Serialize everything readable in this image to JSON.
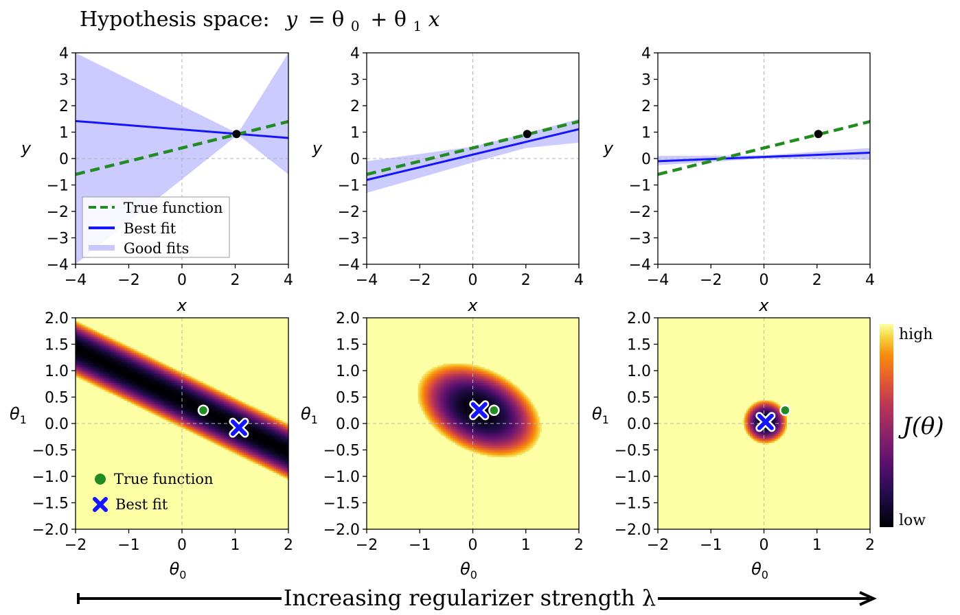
{
  "figure": {
    "title_prefix": "Hypothesis space:",
    "title_eq_y": "y",
    "title_eq_rest": "= θ",
    "title_eq_sub0": "0",
    "title_eq_plus": "+ θ",
    "title_eq_sub1": "1",
    "title_eq_x": "x",
    "footer": "Increasing regularizer strength λ"
  },
  "colors": {
    "true_function": "#228b22",
    "best_fit": "#1414ff",
    "good_fits": "#c8c8ff",
    "observed_point": "#000000",
    "cost_low": "#000004",
    "cost_high": "#fcffa4"
  },
  "colorbar": {
    "label": "J(θ)",
    "high_label": "high",
    "low_label": "low",
    "colormap": "inferno"
  },
  "chart_data": [
    {
      "type": "line",
      "panel": "top-left",
      "xlabel": "x",
      "ylabel": "y",
      "xlim": [
        -4,
        4
      ],
      "ylim": [
        -4,
        4
      ],
      "xticks": [
        "−4",
        "−2",
        "0",
        "2",
        "4"
      ],
      "yticks": [
        "−4",
        "−3",
        "−2",
        "−1",
        "0",
        "1",
        "2",
        "3",
        "4"
      ],
      "true_function": {
        "intercept": 0.4,
        "slope": 0.25
      },
      "best_fit": {
        "intercept": 1.1,
        "slope": -0.08
      },
      "good_fits_band": {
        "x": [
          -4,
          2.1,
          4
        ],
        "upper": [
          4.0,
          0.95,
          4.0
        ],
        "lower": [
          -4.0,
          0.9,
          -0.6
        ]
      },
      "observed_point": {
        "x": 2.05,
        "y": 0.93
      },
      "legend": {
        "position": "lower-left",
        "entries": [
          "True function",
          "Best fit",
          "Good fits"
        ]
      }
    },
    {
      "type": "line",
      "panel": "top-middle",
      "xlabel": "x",
      "ylabel": "y",
      "xlim": [
        -4,
        4
      ],
      "ylim": [
        -4,
        4
      ],
      "xticks": [
        "−4",
        "−2",
        "0",
        "2",
        "4"
      ],
      "yticks": [
        "−4",
        "−3",
        "−2",
        "−1",
        "0",
        "1",
        "2",
        "3",
        "4"
      ],
      "true_function": {
        "intercept": 0.4,
        "slope": 0.25
      },
      "best_fit": {
        "intercept": 0.15,
        "slope": 0.24
      },
      "good_fits_band": {
        "x": [
          -4,
          0,
          2,
          4
        ],
        "upper": [
          -0.1,
          0.45,
          0.95,
          1.5
        ],
        "lower": [
          -1.3,
          -0.15,
          0.4,
          0.6
        ]
      },
      "observed_point": {
        "x": 2.05,
        "y": 0.93
      }
    },
    {
      "type": "line",
      "panel": "top-right",
      "xlabel": "x",
      "ylabel": "y",
      "xlim": [
        -4,
        4
      ],
      "ylim": [
        -4,
        4
      ],
      "xticks": [
        "−4",
        "−2",
        "0",
        "2",
        "4"
      ],
      "yticks": [
        "−4",
        "−3",
        "−2",
        "−1",
        "0",
        "1",
        "2",
        "3",
        "4"
      ],
      "true_function": {
        "intercept": 0.4,
        "slope": 0.25
      },
      "best_fit": {
        "intercept": 0.06,
        "slope": 0.04
      },
      "good_fits_band": {
        "x": [
          -4,
          0,
          4
        ],
        "upper": [
          0.1,
          0.12,
          0.4
        ],
        "lower": [
          -0.25,
          0.0,
          -0.05
        ]
      },
      "observed_point": {
        "x": 2.05,
        "y": 0.93
      }
    },
    {
      "type": "heatmap",
      "panel": "bottom-left",
      "xlabel": "θ0",
      "ylabel": "θ1",
      "xlim": [
        -2,
        2
      ],
      "ylim": [
        -2,
        2
      ],
      "xticks": [
        "−2",
        "−1",
        "0",
        "1",
        "2"
      ],
      "yticks": [
        "−2.0",
        "−1.5",
        "−1.0",
        "−0.5",
        "0.0",
        "0.5",
        "1.0",
        "1.5",
        "2.0"
      ],
      "true_function": {
        "theta0": 0.4,
        "theta1": 0.25
      },
      "best_fit": {
        "theta0": 1.07,
        "theta1": -0.08
      },
      "valley": {
        "center": [
          1.07,
          -0.08
        ],
        "direction": [
          -2.05,
          1.0
        ],
        "half_width": 0.48
      },
      "legend": {
        "position": "lower-left",
        "entries": [
          "True function",
          "Best fit"
        ]
      }
    },
    {
      "type": "heatmap",
      "panel": "bottom-middle",
      "xlabel": "θ0",
      "ylabel": "θ1",
      "xlim": [
        -2,
        2
      ],
      "ylim": [
        -2,
        2
      ],
      "xticks": [
        "−2",
        "−1",
        "0",
        "1",
        "2"
      ],
      "yticks": [
        "−2.0",
        "−1.5",
        "−1.0",
        "−0.5",
        "0.0",
        "0.5",
        "1.0",
        "1.5",
        "2.0"
      ],
      "true_function": {
        "theta0": 0.4,
        "theta1": 0.25
      },
      "best_fit": {
        "theta0": 0.12,
        "theta1": 0.25
      },
      "bowl": {
        "center": [
          0.12,
          0.25
        ],
        "semi_major": 1.25,
        "semi_minor": 0.78,
        "angle_deg": -27
      }
    },
    {
      "type": "heatmap",
      "panel": "bottom-right",
      "xlabel": "θ0",
      "ylabel": "θ1",
      "xlim": [
        -2,
        2
      ],
      "ylim": [
        -2,
        2
      ],
      "xticks": [
        "−2",
        "−1",
        "0",
        "1",
        "2"
      ],
      "yticks": [
        "−2.0",
        "−1.5",
        "−1.0",
        "−0.5",
        "0.0",
        "0.5",
        "1.0",
        "1.5",
        "2.0"
      ],
      "true_function": {
        "theta0": 0.4,
        "theta1": 0.25
      },
      "best_fit": {
        "theta0": 0.03,
        "theta1": 0.03
      },
      "bowl": {
        "center": [
          0.03,
          0.03
        ],
        "semi_major": 0.42,
        "semi_minor": 0.42,
        "angle_deg": 0
      }
    }
  ],
  "legends": {
    "top": {
      "true_function": "True function",
      "best_fit": "Best fit",
      "good_fits": "Good fits"
    },
    "bottom": {
      "true_function": "True function",
      "best_fit": "Best fit"
    }
  }
}
